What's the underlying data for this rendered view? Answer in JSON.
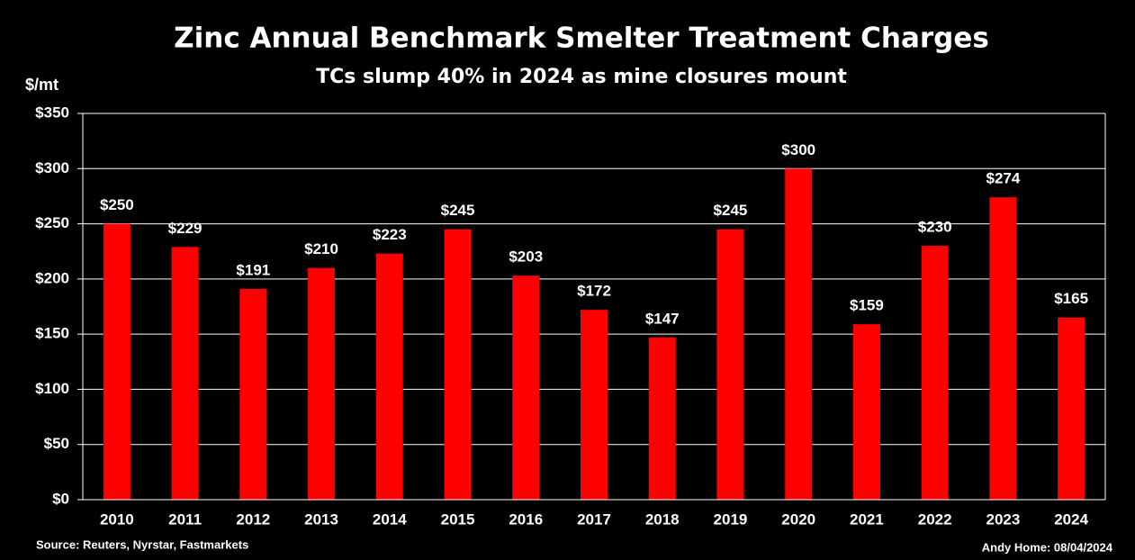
{
  "chart_data": {
    "type": "bar",
    "title": "Zinc Annual Benchmark Smelter Treatment Charges",
    "subtitle": "TCs slump 40% in 2024 as mine closures mount",
    "y_label": "$/mt",
    "source": "Source: Reuters, Nyrstar, Fastmarkets",
    "credit": "Andy Home: 08/04/2024",
    "categories": [
      "2010",
      "2011",
      "2012",
      "2013",
      "2014",
      "2015",
      "2016",
      "2017",
      "2018",
      "2019",
      "2020",
      "2021",
      "2022",
      "2023",
      "2024"
    ],
    "values": [
      250,
      229,
      191,
      210,
      223,
      245,
      203,
      172,
      147,
      245,
      300,
      159,
      230,
      274,
      165
    ],
    "value_labels": [
      "$250",
      "$229",
      "$191",
      "$210",
      "$223",
      "$245",
      "$203",
      "$172",
      "$147",
      "$245",
      "$300",
      "$159",
      "$230",
      "$274",
      "$165"
    ],
    "color": "#ff0000",
    "ylim": [
      0,
      350
    ],
    "yticks": [
      {
        "value": 0,
        "label": "$0"
      },
      {
        "value": 50,
        "label": "$50"
      },
      {
        "value": 100,
        "label": "$100"
      },
      {
        "value": 150,
        "label": "$150"
      },
      {
        "value": 200,
        "label": "$200"
      },
      {
        "value": 250,
        "label": "$250"
      },
      {
        "value": 300,
        "label": "$300"
      },
      {
        "value": 350,
        "label": "$350"
      }
    ],
    "grid": true
  }
}
